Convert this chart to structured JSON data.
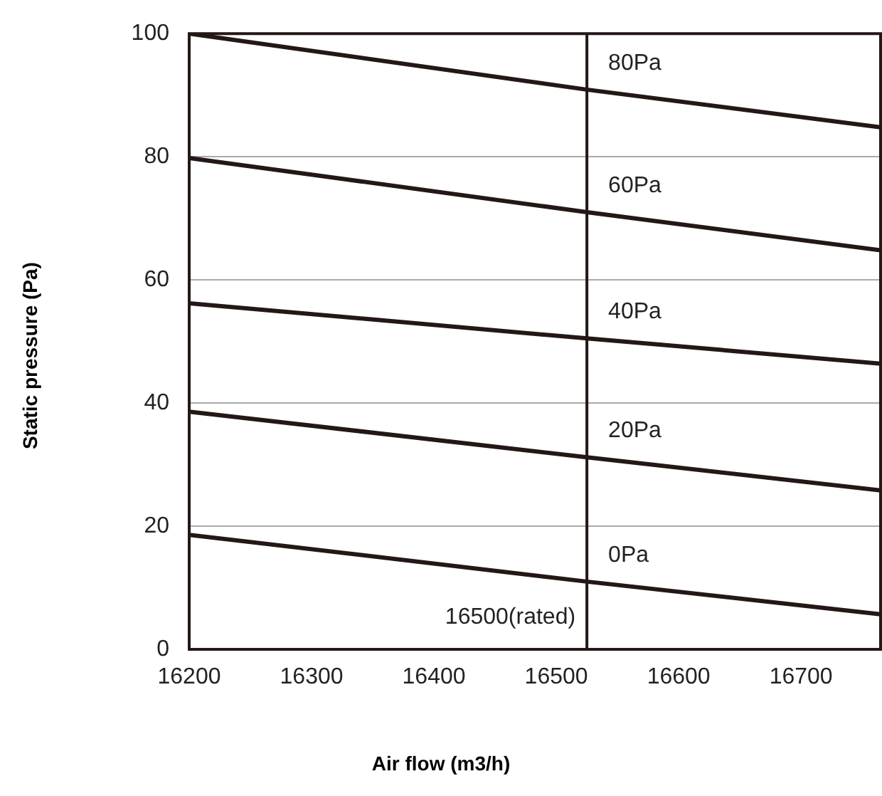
{
  "chart_data": {
    "type": "line",
    "xlabel": "Air flow (m3/h)",
    "ylabel": "Static pressure (Pa)",
    "xlim": [
      16200,
      16765
    ],
    "xticks": [
      16200,
      16300,
      16400,
      16500,
      16600,
      16700
    ],
    "ylim": [
      0,
      100
    ],
    "yticks": [
      0,
      20,
      40,
      60,
      80,
      100
    ],
    "grid": "y",
    "legend": false,
    "marker": "none",
    "line_style": "solid",
    "ref_lines": [
      {
        "axis": "x",
        "value": 16525,
        "label": "16500(rated)",
        "color": "#231815"
      }
    ],
    "series": [
      {
        "name": "80Pa",
        "color": "#231815",
        "x": [
          16200,
          16525,
          16765
        ],
        "values": [
          100,
          90.9,
          84.8
        ]
      },
      {
        "name": "60Pa",
        "color": "#231815",
        "x": [
          16200,
          16525,
          16765
        ],
        "values": [
          79.8,
          71,
          64.8
        ]
      },
      {
        "name": "40Pa",
        "color": "#231815",
        "x": [
          16200,
          16525,
          16765
        ],
        "values": [
          56.2,
          50.5,
          46.4
        ]
      },
      {
        "name": "20Pa",
        "color": "#231815",
        "x": [
          16200,
          16525,
          16765
        ],
        "values": [
          38.6,
          31.2,
          25.8
        ]
      },
      {
        "name": "0Pa",
        "color": "#231815",
        "x": [
          16200,
          16525,
          16765
        ],
        "values": [
          18.6,
          11,
          5.7
        ]
      }
    ]
  }
}
